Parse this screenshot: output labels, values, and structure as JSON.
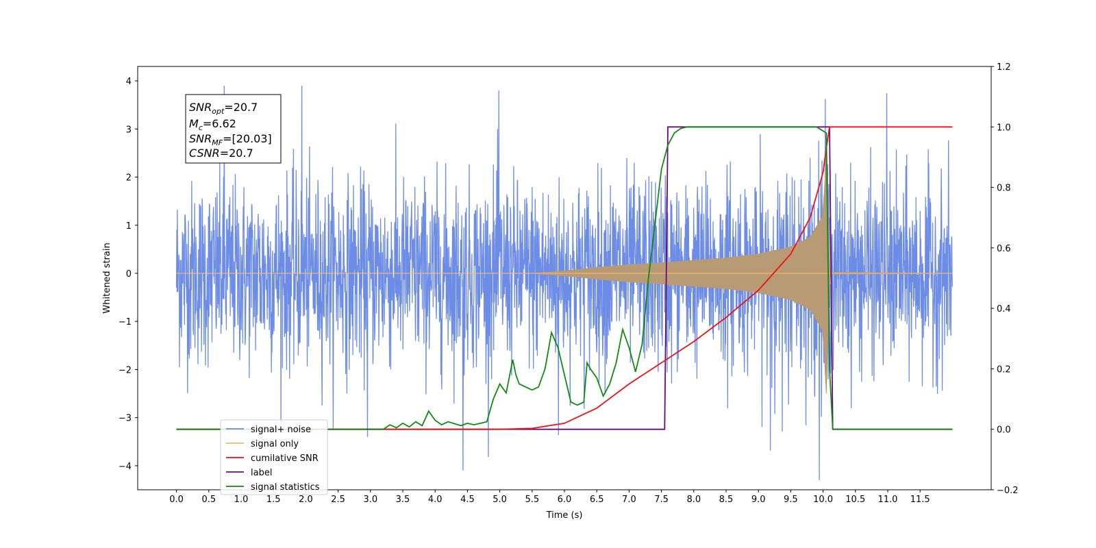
{
  "chart_data": {
    "type": "line",
    "xlabel": "Time (s)",
    "ylabel": "Whitened strain",
    "xlim": [
      -0.6,
      12.6
    ],
    "ylim": [
      -4.5,
      4.3
    ],
    "y2lim": [
      -0.2,
      1.2
    ],
    "x_ticks": [
      "0.0",
      "0.5",
      "1.0",
      "1.5",
      "2.0",
      "2.5",
      "3.0",
      "3.5",
      "4.0",
      "4.5",
      "5.0",
      "5.5",
      "6.0",
      "6.5",
      "7.0",
      "7.5",
      "8.0",
      "8.5",
      "9.0",
      "9.5",
      "10.0",
      "10.5",
      "11.0",
      "11.5"
    ],
    "y_ticks": [
      4,
      3,
      2,
      1,
      0,
      -1,
      -2,
      -3,
      -4
    ],
    "y2_ticks": [
      "1.2",
      "1.0",
      "0.8",
      "0.6",
      "0.4",
      "0.2",
      "0.0",
      "−0.2"
    ],
    "annotation": {
      "snr_opt": {
        "base": "SNR",
        "sub": "opt",
        "value": "=20.7"
      },
      "mc": {
        "base": "M",
        "sub": "c",
        "value": "=6.62"
      },
      "snr_mf": {
        "base": "SNR",
        "sub": "MF",
        "value": "=[20.03]"
      },
      "csnr": {
        "base": "CSNR",
        "sub": "",
        "value": "=20.7"
      }
    },
    "legend_position": "lower-left",
    "colors": {
      "signal_noise": "#6c8ce6",
      "signal_only": "#f2b86a",
      "signal_overlap": "#b89a74",
      "cumulative_snr": "#ee1111",
      "label": "#6a0a7a",
      "signal_statistics": "#118811"
    },
    "series": [
      {
        "name": "signal+ noise",
        "axis": "left",
        "description_t_range": [
          0.0,
          12.0
        ],
        "amplitude_envelope": 1.9,
        "peak_values": [
          3.9,
          3.9,
          3.8,
          3.75,
          -4.1,
          -3.9,
          -3.4,
          -3.4
        ]
      },
      {
        "name": "signal only",
        "axis": "left",
        "t": [
          0.0,
          5.5,
          6.0,
          6.5,
          7.0,
          7.5,
          8.0,
          8.5,
          9.0,
          9.5,
          9.8,
          10.0,
          10.05,
          10.1,
          10.15,
          12.0
        ],
        "envelope": [
          0.0,
          0.0,
          0.05,
          0.12,
          0.18,
          0.22,
          0.27,
          0.32,
          0.4,
          0.55,
          0.75,
          1.2,
          2.5,
          0.0,
          0.02,
          0.0
        ]
      },
      {
        "name": "cumilative SNR",
        "axis": "right",
        "t": [
          0.0,
          5.0,
          5.5,
          6.0,
          6.5,
          7.0,
          7.5,
          8.0,
          8.5,
          9.0,
          9.5,
          9.8,
          10.0,
          10.05,
          10.1,
          12.0
        ],
        "values": [
          0.0,
          0.0,
          0.003,
          0.02,
          0.07,
          0.15,
          0.22,
          0.29,
          0.37,
          0.46,
          0.58,
          0.7,
          0.85,
          0.93,
          1.0,
          1.0
        ]
      },
      {
        "name": "label",
        "axis": "right",
        "t": [
          0.0,
          7.55,
          7.6,
          10.1,
          10.15,
          12.0
        ],
        "values": [
          0.0,
          0.0,
          1.0,
          1.0,
          0.0,
          0.0
        ]
      },
      {
        "name": "signal statistics",
        "axis": "right",
        "t": [
          0.0,
          3.2,
          3.3,
          3.4,
          3.5,
          3.6,
          3.7,
          3.8,
          3.9,
          4.0,
          4.1,
          4.2,
          4.4,
          4.5,
          4.6,
          4.8,
          4.9,
          5.0,
          5.1,
          5.2,
          5.25,
          5.3,
          5.4,
          5.5,
          5.6,
          5.7,
          5.8,
          5.9,
          6.0,
          6.1,
          6.2,
          6.3,
          6.35,
          6.4,
          6.5,
          6.6,
          6.7,
          6.8,
          6.9,
          7.0,
          7.1,
          7.2,
          7.3,
          7.4,
          7.5,
          7.6,
          7.7,
          7.8,
          7.9,
          8.0,
          9.9,
          10.05,
          10.1,
          10.15,
          12.0
        ],
        "values": [
          0.0,
          0.0,
          0.015,
          0.005,
          0.02,
          0.008,
          0.025,
          0.012,
          0.06,
          0.03,
          0.015,
          0.025,
          0.012,
          0.02,
          0.015,
          0.025,
          0.1,
          0.15,
          0.12,
          0.23,
          0.18,
          0.15,
          0.14,
          0.13,
          0.14,
          0.2,
          0.32,
          0.27,
          0.18,
          0.09,
          0.08,
          0.09,
          0.22,
          0.2,
          0.17,
          0.11,
          0.15,
          0.22,
          0.33,
          0.27,
          0.19,
          0.28,
          0.5,
          0.68,
          0.86,
          0.94,
          0.98,
          0.995,
          1.0,
          1.0,
          1.0,
          0.98,
          0.2,
          0.0,
          0.0
        ]
      }
    ],
    "legend": [
      {
        "label": "signal+ noise",
        "key": "signal_noise"
      },
      {
        "label": "signal only",
        "key": "signal_only"
      },
      {
        "label": "cumilative SNR",
        "key": "cumulative_snr"
      },
      {
        "label": "label",
        "key": "label"
      },
      {
        "label": "signal statistics",
        "key": "signal_statistics"
      }
    ],
    "legend_overlap_text": "signal only"
  }
}
